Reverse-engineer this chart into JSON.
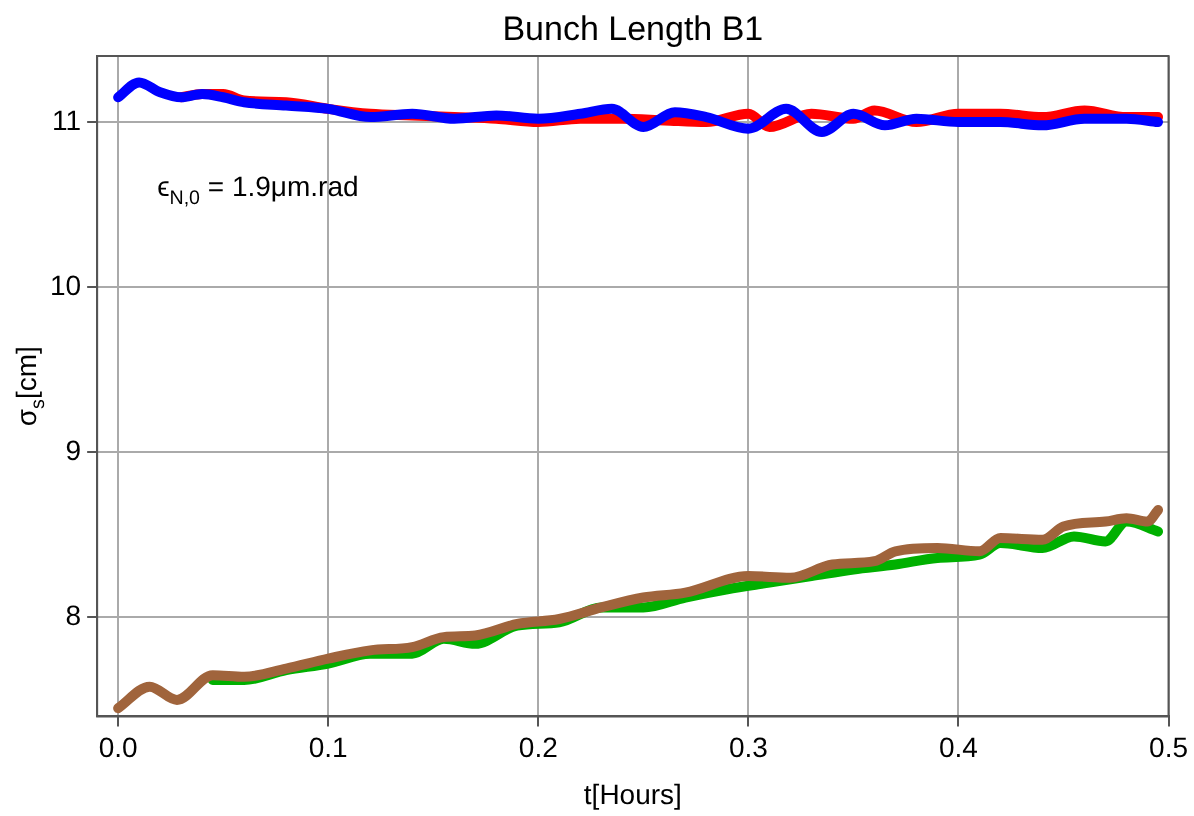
{
  "chart_data": {
    "type": "line",
    "title": "Bunch Length B1",
    "xlabel": "t[Hours]",
    "ylabel": "σ$_{s}$[cm]",
    "annotations": [
      "ϵ$_{N,0}$ = 1.9μm.rad"
    ],
    "xlim": [
      -0.01,
      0.5
    ],
    "ylim": [
      7.4,
      11.4
    ],
    "xticks": [
      {
        "value": 0,
        "label": "0.0"
      },
      {
        "value": 0.1,
        "label": "0.1"
      },
      {
        "value": 0.2,
        "label": "0.2"
      },
      {
        "value": 0.3,
        "label": "0.3"
      },
      {
        "value": 0.4,
        "label": "0.4"
      },
      {
        "value": 0.5,
        "label": "0.5"
      }
    ],
    "yticks": [
      8,
      9,
      10,
      11
    ],
    "grid": true,
    "legend": false,
    "marker": "none",
    "line_style": "solid",
    "series": [
      {
        "color": "#ff0000",
        "x": [
          0.03,
          0.04,
          0.05,
          0.06,
          0.08,
          0.1,
          0.12,
          0.14,
          0.16,
          0.18,
          0.2,
          0.22,
          0.24,
          0.26,
          0.28,
          0.3,
          0.31,
          0.33,
          0.35,
          0.36,
          0.38,
          0.4,
          0.42,
          0.44,
          0.46,
          0.48,
          0.495
        ],
        "values": [
          11.15,
          11.17,
          11.17,
          11.13,
          11.12,
          11.08,
          11.05,
          11.04,
          11.03,
          11.02,
          11.0,
          11.02,
          11.02,
          11.01,
          11.0,
          11.05,
          10.97,
          11.05,
          11.02,
          11.07,
          11.0,
          11.05,
          11.05,
          11.03,
          11.07,
          11.03,
          11.03
        ]
      },
      {
        "color": "#0000ff",
        "x": [
          0,
          0.01,
          0.02,
          0.03,
          0.04,
          0.05,
          0.06,
          0.08,
          0.1,
          0.12,
          0.14,
          0.16,
          0.18,
          0.2,
          0.22,
          0.235,
          0.25,
          0.265,
          0.28,
          0.3,
          0.318,
          0.335,
          0.35,
          0.365,
          0.38,
          0.4,
          0.42,
          0.44,
          0.46,
          0.48,
          0.495
        ],
        "values": [
          11.15,
          11.24,
          11.18,
          11.15,
          11.17,
          11.15,
          11.12,
          11.1,
          11.08,
          11.03,
          11.05,
          11.02,
          11.04,
          11.02,
          11.05,
          11.08,
          10.97,
          11.06,
          11.03,
          10.96,
          11.08,
          10.94,
          11.05,
          10.98,
          11.02,
          11.0,
          11.0,
          10.98,
          11.02,
          11.02,
          11.0
        ]
      },
      {
        "color": "#00b000",
        "x": [
          0.045,
          0.06,
          0.08,
          0.1,
          0.12,
          0.14,
          0.155,
          0.17,
          0.19,
          0.21,
          0.23,
          0.25,
          0.27,
          0.29,
          0.31,
          0.33,
          0.35,
          0.37,
          0.39,
          0.41,
          0.42,
          0.44,
          0.455,
          0.47,
          0.48,
          0.495
        ],
        "values": [
          7.62,
          7.62,
          7.68,
          7.72,
          7.78,
          7.78,
          7.87,
          7.84,
          7.95,
          7.97,
          8.06,
          8.06,
          8.12,
          8.17,
          8.21,
          8.25,
          8.29,
          8.32,
          8.36,
          8.38,
          8.45,
          8.42,
          8.49,
          8.46,
          8.58,
          8.52
        ]
      },
      {
        "color": "#a0643c",
        "x": [
          0,
          0.015,
          0.028,
          0.045,
          0.06,
          0.08,
          0.1,
          0.12,
          0.14,
          0.155,
          0.17,
          0.19,
          0.21,
          0.23,
          0.25,
          0.27,
          0.3,
          0.32,
          0.34,
          0.36,
          0.37,
          0.39,
          0.41,
          0.42,
          0.44,
          0.45,
          0.47,
          0.48,
          0.49,
          0.495
        ],
        "values": [
          7.45,
          7.58,
          7.5,
          7.65,
          7.64,
          7.69,
          7.75,
          7.8,
          7.82,
          7.88,
          7.89,
          7.96,
          7.99,
          8.06,
          8.12,
          8.15,
          8.25,
          8.24,
          8.32,
          8.34,
          8.4,
          8.42,
          8.4,
          8.48,
          8.47,
          8.55,
          8.58,
          8.6,
          8.58,
          8.65
        ]
      }
    ]
  }
}
